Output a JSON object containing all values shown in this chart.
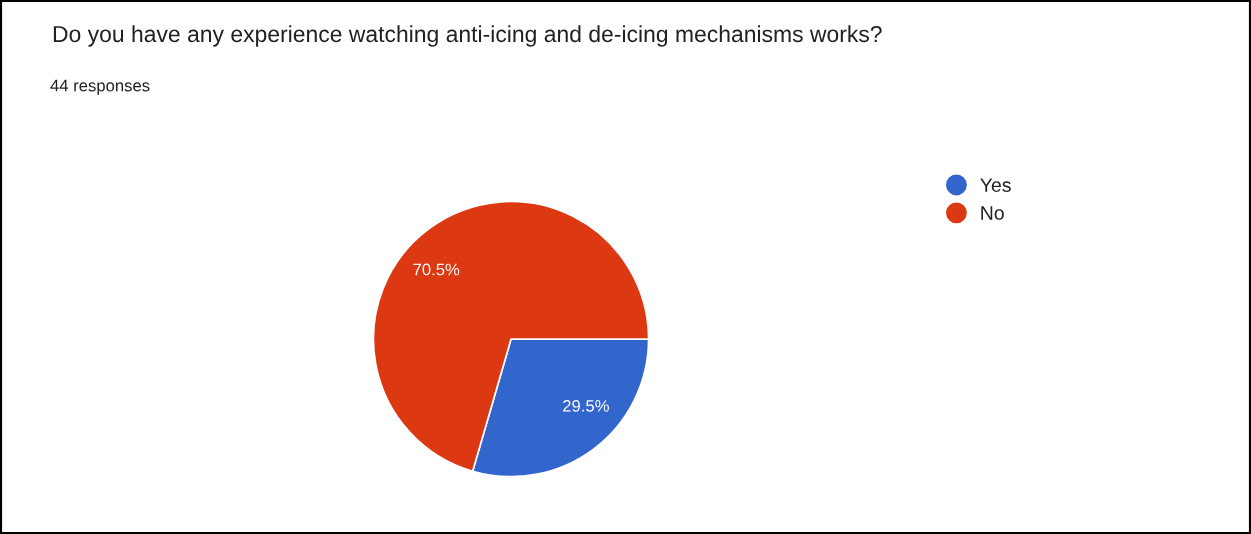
{
  "chart_data": {
    "type": "pie",
    "title": "Do you have any experience watching anti-icing and de-icing mechanisms works?",
    "subtitle": "44 responses",
    "categories": [
      "Yes",
      "No"
    ],
    "values": [
      29.5,
      70.5
    ],
    "colors": [
      "#3366cc",
      "#dc3912"
    ],
    "value_labels": [
      "29.5%",
      "70.5%"
    ],
    "legend": "top right"
  }
}
